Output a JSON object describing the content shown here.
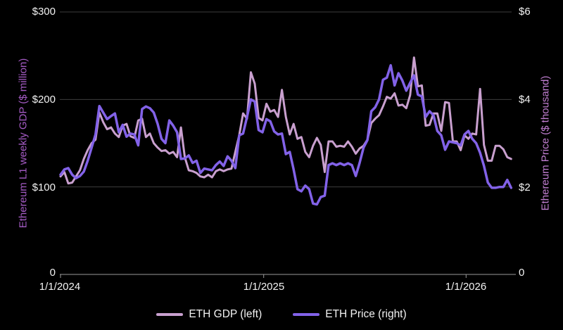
{
  "axes": {
    "left": {
      "title": "Ethereum L1 weekly GDP ($ million)",
      "title_color": "#a55bc5",
      "ticks": [
        "$300",
        "$200",
        "$100",
        "0"
      ]
    },
    "right": {
      "title": "Ethereum Price ($ thousand)",
      "title_color": "#c27fd2",
      "ticks": [
        "$6",
        "$4",
        "$2",
        "0"
      ]
    },
    "x": {
      "ticks": [
        "1/1/2024",
        "1/1/2025",
        "1/1/2026"
      ]
    }
  },
  "legend": {
    "items": [
      {
        "label": "ETH GDP (left)",
        "color": "#c9a0cf"
      },
      {
        "label": "ETH Price (right)",
        "color": "#8262e8"
      }
    ]
  },
  "colors": {
    "background": "#000000",
    "gridline": "#3d3d3d",
    "axis_line": "#9a9a9a",
    "tick_text": "#f2f2f2",
    "gdp_line": "#c9a0cf",
    "price_line": "#8262e8"
  },
  "chart_data": {
    "type": "line",
    "x_unit": "week",
    "x_start": "1/1/2024",
    "x_tick_labels": [
      "1/1/2024",
      "1/1/2025",
      "1/1/2026"
    ],
    "x_tick_week_index": [
      0,
      52.3,
      104.4
    ],
    "grid": "horizontal",
    "left_axis": {
      "label": "Ethereum L1 weekly GDP ($ million)",
      "range": [
        0,
        300
      ],
      "ticks": [
        0,
        100,
        200,
        300
      ],
      "tick_format": "$"
    },
    "right_axis": {
      "label": "Ethereum Price ($ thousand)",
      "range": [
        0,
        6
      ],
      "ticks": [
        0,
        2,
        4,
        6
      ],
      "tick_format": "$"
    },
    "series": [
      {
        "name": "ETH GDP (left)",
        "axis": "left",
        "color": "#c9a0cf",
        "unit": "$ million",
        "values": [
          112,
          117,
          104,
          105,
          112,
          119,
          132,
          142,
          150,
          154,
          185,
          174,
          166,
          168,
          161,
          157,
          170,
          172,
          158,
          156,
          176,
          178,
          157,
          161,
          150,
          145,
          141,
          142,
          138,
          140,
          134,
          168,
          134,
          119,
          118,
          116,
          112,
          111,
          114,
          111,
          118,
          120,
          118,
          120,
          121,
          140,
          159,
          184,
          178,
          231,
          218,
          179,
          176,
          195,
          186,
          188,
          180,
          211,
          180,
          160,
          172,
          155,
          157,
          140,
          134,
          147,
          156,
          148,
          117,
          152,
          152,
          146,
          147,
          146,
          152,
          146,
          138,
          144,
          147,
          154,
          173,
          178,
          182,
          192,
          203,
          201,
          207,
          193,
          194,
          190,
          205,
          248,
          215,
          216,
          170,
          171,
          184,
          184,
          164,
          197,
          196,
          152,
          152,
          142,
          159,
          155,
          161,
          160,
          212,
          148,
          130,
          130,
          147,
          147,
          143,
          134,
          132
        ]
      },
      {
        "name": "ETH Price (right)",
        "axis": "right",
        "color": "#8262e8",
        "unit": "$ thousand",
        "values": [
          2.28,
          2.4,
          2.43,
          2.28,
          2.2,
          2.25,
          2.35,
          2.6,
          2.9,
          3.2,
          3.85,
          3.7,
          3.55,
          3.62,
          3.68,
          3.25,
          3.42,
          3.15,
          3.22,
          3.2,
          2.95,
          3.78,
          3.84,
          3.8,
          3.7,
          3.44,
          3.1,
          3.0,
          3.52,
          3.4,
          3.25,
          2.64,
          2.65,
          2.72,
          2.55,
          2.6,
          2.32,
          2.42,
          2.4,
          2.38,
          2.5,
          2.58,
          2.48,
          2.7,
          2.6,
          2.43,
          3.18,
          3.22,
          3.6,
          4.0,
          3.95,
          3.3,
          3.25,
          3.55,
          3.5,
          3.27,
          3.2,
          3.22,
          2.75,
          2.8,
          2.4,
          1.95,
          1.9,
          2.03,
          1.95,
          1.62,
          1.6,
          1.77,
          1.8,
          2.5,
          2.54,
          2.5,
          2.54,
          2.5,
          2.54,
          2.5,
          2.25,
          2.55,
          2.9,
          3.07,
          3.73,
          3.82,
          4.0,
          4.45,
          4.5,
          4.78,
          4.32,
          4.6,
          4.43,
          4.2,
          4.38,
          4.55,
          4.11,
          4.07,
          3.6,
          3.73,
          3.64,
          3.28,
          3.18,
          2.85,
          3.04,
          3.02,
          3.0,
          2.95,
          3.2,
          3.28,
          3.1,
          3.0,
          2.78,
          2.48,
          2.1,
          1.98,
          1.98,
          2.0,
          2.0,
          2.16,
          1.98
        ]
      }
    ]
  }
}
